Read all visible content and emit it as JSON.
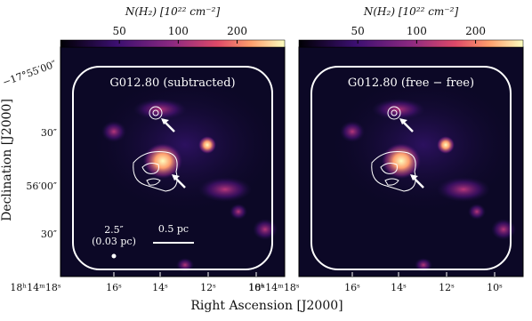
{
  "figure": {
    "colorbar": {
      "label": "N(H₂) [10²² cm⁻²]",
      "scale": "log",
      "lim": [
        25,
        350
      ],
      "ticks": [
        50,
        100,
        200
      ]
    },
    "panels": [
      {
        "label": "G012.80 (subtracted)",
        "x_tick_labels": [
          "18ʰ14ᵐ18ˢ",
          "16ˢ",
          "14ˢ",
          "12ˢ",
          "10ˢ"
        ],
        "beam_label": [
          "2.5″",
          "(0.03 pc)"
        ],
        "scalebar_label": "0.5 pc"
      },
      {
        "label": "G012.80 (free − free)",
        "x_tick_labels": [
          "18ʰ14ᵐ18ˢ",
          "16ˢ",
          "14ˢ",
          "12ˢ",
          "10ˢ"
        ]
      }
    ],
    "y_tick_labels": [
      "−17°55′00″",
      "30″",
      "56′00″",
      "30″"
    ],
    "x_axis_label": "Right Ascension [J2000]",
    "y_axis_label": "Declination [J2000]"
  }
}
